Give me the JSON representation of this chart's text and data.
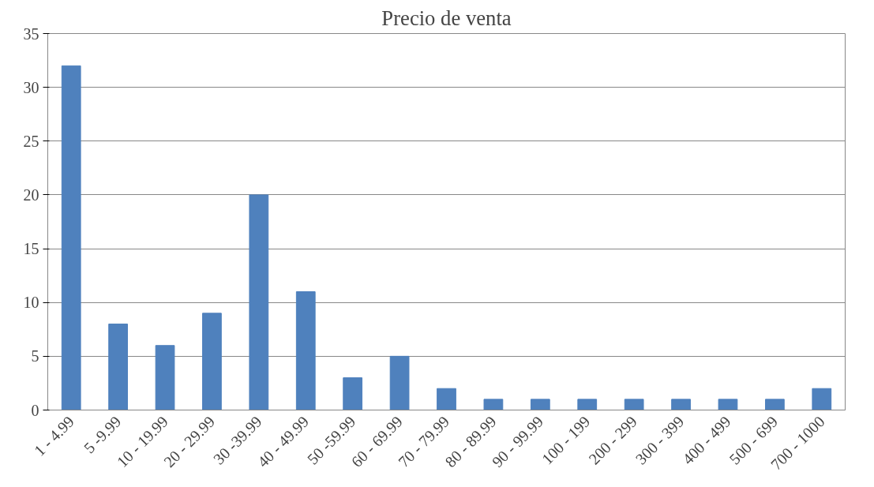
{
  "chart_data": {
    "type": "bar",
    "title": "Precio de venta",
    "categories": [
      "1 - 4.99",
      "5 -9.99",
      "10 - 19.99",
      "20 - 29.99",
      "30 -39.99",
      "40 - 49.99",
      "50 -59.99",
      "60 - 69.99",
      "70 - 79.99",
      "80 - 89.99",
      "90 - 99.99",
      "100 - 199",
      "200 - 299",
      "300 - 399",
      "400 - 499",
      "500 - 699",
      "700 - 1000"
    ],
    "values": [
      32,
      8,
      6,
      9,
      20,
      11,
      3,
      5,
      2,
      1,
      1,
      1,
      1,
      1,
      1,
      1,
      2
    ],
    "color": "#4f81bd",
    "ylim": [
      0,
      35
    ],
    "yticks": [
      0,
      5,
      10,
      15,
      20,
      25,
      30,
      35
    ],
    "grid": "y"
  }
}
